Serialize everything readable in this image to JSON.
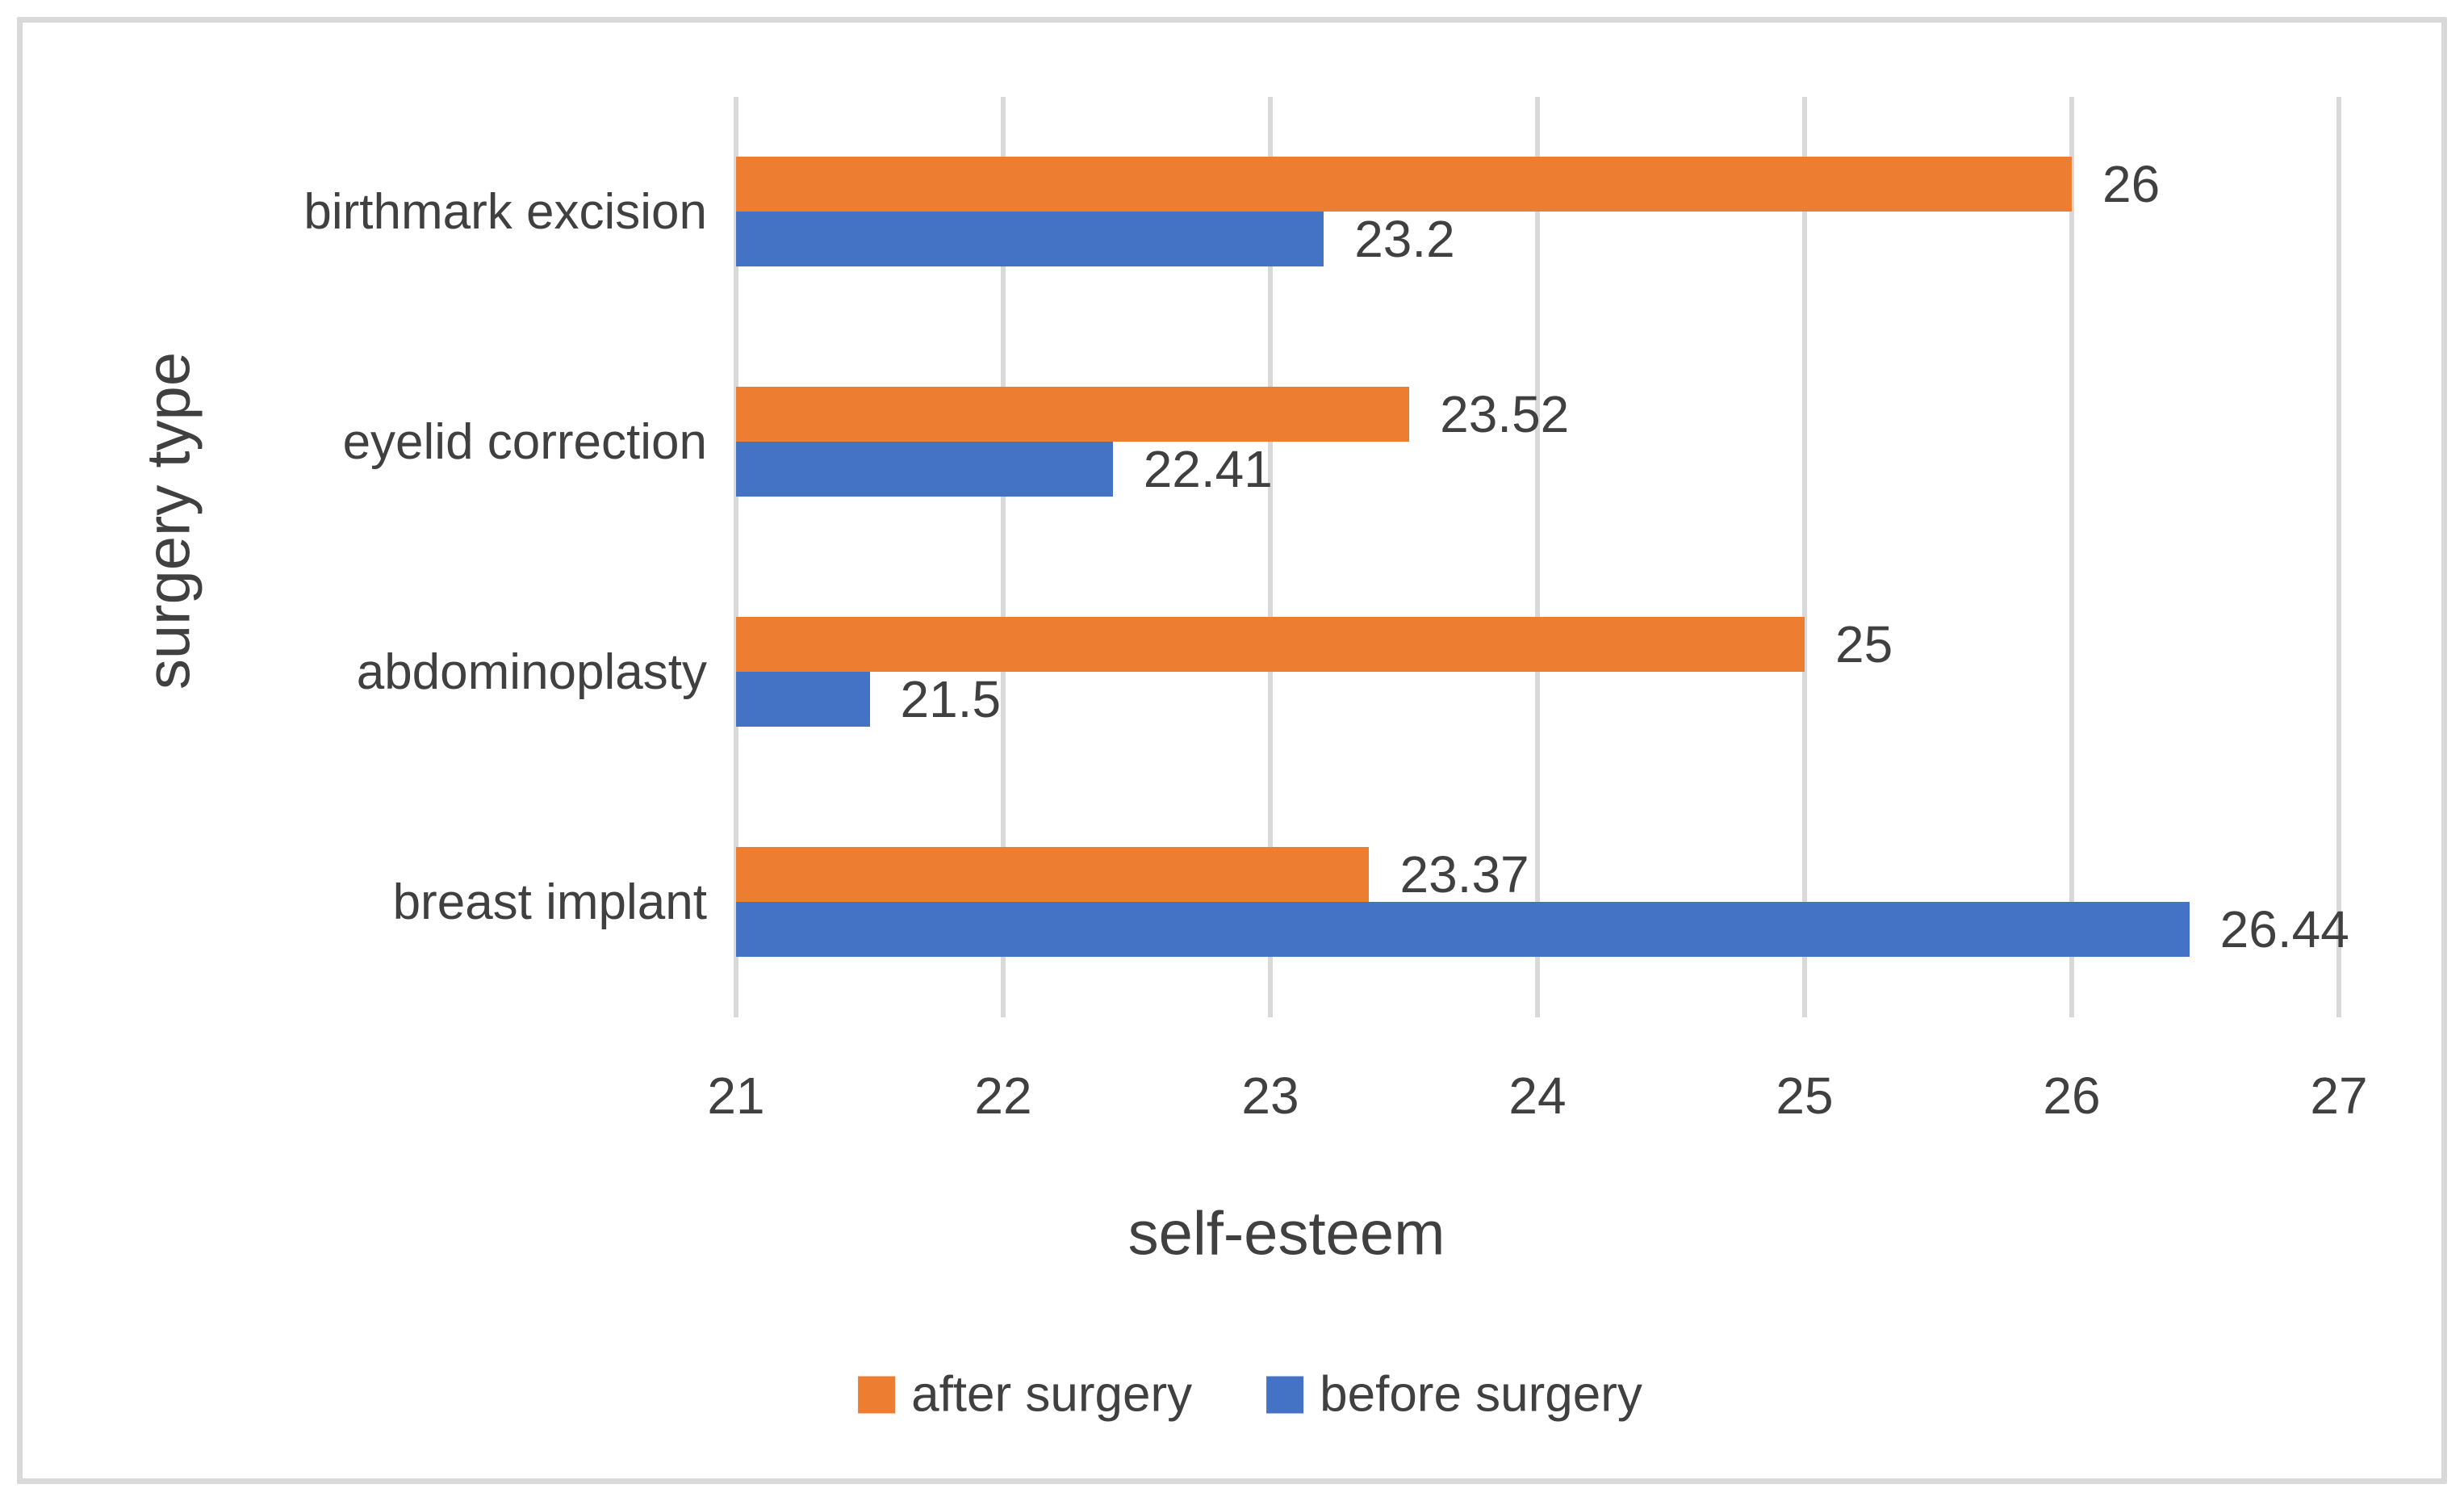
{
  "chart_data": {
    "type": "bar",
    "orientation": "horizontal",
    "xlabel": "self-esteem",
    "ylabel": "surgery type",
    "xlim": [
      21,
      27
    ],
    "xticks": [
      "21",
      "22",
      "23",
      "24",
      "25",
      "26",
      "27"
    ],
    "grid": true,
    "legend_position": "bottom-center",
    "categories": [
      "birthmark excision",
      "eyelid correction",
      "abdominoplasty",
      "breast implant"
    ],
    "series": [
      {
        "name": "after surgery",
        "color": "#ED7D31",
        "values": [
          26,
          23.52,
          25,
          23.37
        ],
        "data_labels": [
          "26",
          "23.52",
          "25",
          "23.37"
        ]
      },
      {
        "name": "before surgery",
        "color": "#4472C4",
        "values": [
          23.2,
          22.41,
          21.5,
          26.44
        ],
        "data_labels": [
          "23.2",
          "22.41",
          "21.5",
          "26.44"
        ]
      }
    ]
  },
  "colors": {
    "gridline": "#D9D9D9",
    "chart_border": "#D9D9D9",
    "text": "#404040"
  }
}
